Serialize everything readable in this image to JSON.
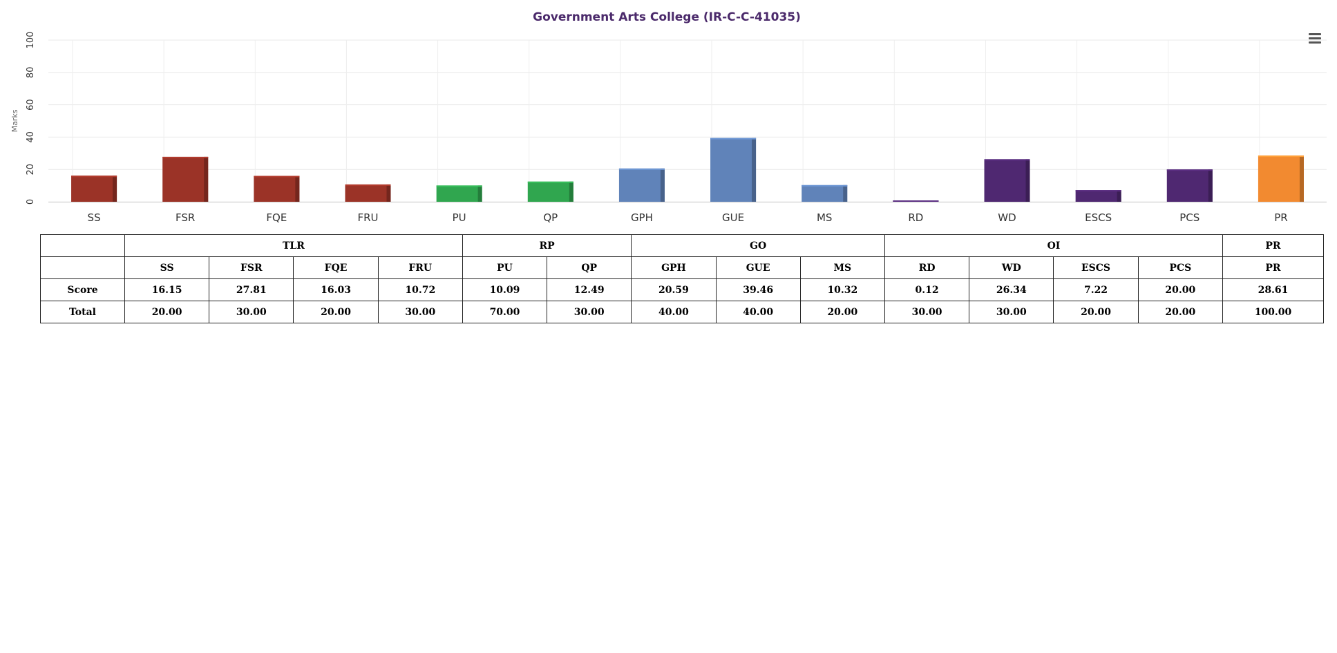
{
  "chart_data": {
    "type": "bar",
    "title": "Government Arts College (IR-C-C-41035)",
    "ylabel": "Marks",
    "xlabel": "",
    "ylim": [
      0,
      100
    ],
    "yticks": [
      "0",
      "20",
      "40",
      "60",
      "80",
      "100"
    ],
    "categories": [
      "SS",
      "FSR",
      "FQE",
      "FRU",
      "PU",
      "QP",
      "GPH",
      "GUE",
      "MS",
      "RD",
      "WD",
      "ESCS",
      "PCS",
      "PR"
    ],
    "values": [
      16.15,
      27.81,
      16.03,
      10.72,
      10.09,
      12.49,
      20.59,
      39.46,
      10.32,
      0.12,
      26.34,
      7.22,
      20.0,
      28.61
    ],
    "colors": [
      "#9b3327",
      "#9b3327",
      "#9b3327",
      "#9b3327",
      "#30a64f",
      "#30a64f",
      "#6083b9",
      "#6083b9",
      "#6083b9",
      "#4f2871",
      "#4f2871",
      "#4f2871",
      "#4f2871",
      "#f28a30"
    ],
    "grid": true
  },
  "table": {
    "groups": [
      {
        "label": "TLR",
        "span": 4
      },
      {
        "label": "RP",
        "span": 2
      },
      {
        "label": "GO",
        "span": 3
      },
      {
        "label": "OI",
        "span": 4
      },
      {
        "label": "PR",
        "span": 1
      }
    ],
    "columns": [
      "SS",
      "FSR",
      "FQE",
      "FRU",
      "PU",
      "QP",
      "GPH",
      "GUE",
      "MS",
      "RD",
      "WD",
      "ESCS",
      "PCS",
      "PR"
    ],
    "rows": [
      {
        "label": "Score",
        "values": [
          "16.15",
          "27.81",
          "16.03",
          "10.72",
          "10.09",
          "12.49",
          "20.59",
          "39.46",
          "10.32",
          "0.12",
          "26.34",
          "7.22",
          "20.00",
          "28.61"
        ]
      },
      {
        "label": "Total",
        "values": [
          "20.00",
          "30.00",
          "20.00",
          "30.00",
          "70.00",
          "30.00",
          "40.00",
          "40.00",
          "20.00",
          "30.00",
          "30.00",
          "20.00",
          "20.00",
          "100.00"
        ]
      }
    ]
  },
  "menu": {
    "icon": "hamburger-menu-icon"
  }
}
